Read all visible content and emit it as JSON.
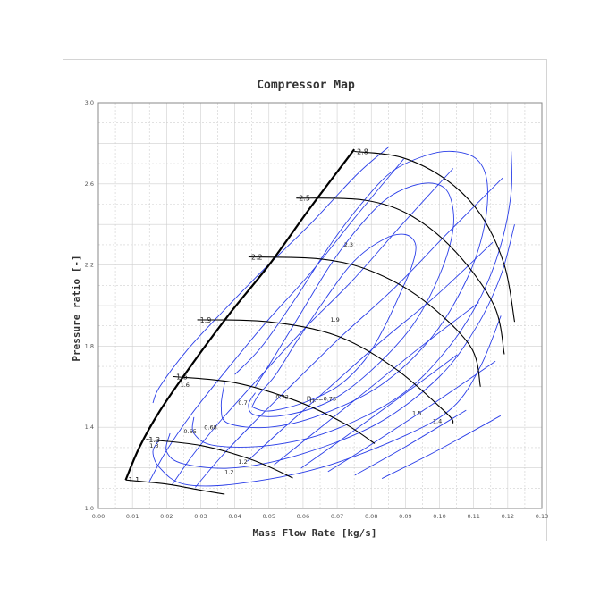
{
  "chart_data": {
    "type": "line",
    "title": "Compressor Map",
    "xlabel": "Mass Flow Rate  [kg/s]",
    "ylabel": "Pressure ratio  [-]",
    "xlim": [
      0.0,
      0.13
    ],
    "ylim": [
      1.0,
      3.0
    ],
    "x_ticks": [
      "0.00",
      "0.01",
      "0.02",
      "0.03",
      "0.04",
      "0.05",
      "0.06",
      "0.07",
      "0.08",
      "0.09",
      "0.10",
      "0.11",
      "0.12",
      "0.13"
    ],
    "y_ticks": [
      "1.0",
      "1.4",
      "1.8",
      "2.2",
      "2.6",
      "3.0"
    ],
    "grid": true,
    "colors": {
      "speed_lines": "#000000",
      "efficiency_lines": "#2a3ee8",
      "surge_line": "#000000",
      "grid": "#cfcfcf"
    },
    "surge_line": [
      [
        0.008,
        1.14
      ],
      [
        0.012,
        1.3
      ],
      [
        0.018,
        1.48
      ],
      [
        0.027,
        1.7
      ],
      [
        0.038,
        1.95
      ],
      [
        0.05,
        2.2
      ],
      [
        0.062,
        2.48
      ],
      [
        0.075,
        2.77
      ]
    ],
    "speed_lines": [
      {
        "label": "1.1",
        "points": [
          [
            0.008,
            1.14
          ],
          [
            0.02,
            1.12
          ],
          [
            0.03,
            1.09
          ],
          [
            0.037,
            1.07
          ]
        ]
      },
      {
        "label": "1.3",
        "points": [
          [
            0.014,
            1.34
          ],
          [
            0.03,
            1.31
          ],
          [
            0.045,
            1.24
          ],
          [
            0.057,
            1.15
          ]
        ]
      },
      {
        "label": "1.6",
        "points": [
          [
            0.022,
            1.65
          ],
          [
            0.04,
            1.62
          ],
          [
            0.058,
            1.53
          ],
          [
            0.072,
            1.42
          ],
          [
            0.081,
            1.32
          ]
        ]
      },
      {
        "label": "1.9",
        "points": [
          [
            0.029,
            1.93
          ],
          [
            0.05,
            1.92
          ],
          [
            0.07,
            1.85
          ],
          [
            0.087,
            1.69
          ],
          [
            0.102,
            1.47
          ],
          [
            0.104,
            1.42
          ]
        ]
      },
      {
        "label": "2.2",
        "points": [
          [
            0.044,
            2.24
          ],
          [
            0.065,
            2.23
          ],
          [
            0.08,
            2.17
          ],
          [
            0.095,
            2.03
          ],
          [
            0.109,
            1.8
          ],
          [
            0.112,
            1.6
          ]
        ]
      },
      {
        "label": "2.5",
        "points": [
          [
            0.058,
            2.53
          ],
          [
            0.078,
            2.52
          ],
          [
            0.092,
            2.44
          ],
          [
            0.105,
            2.26
          ],
          [
            0.116,
            2.0
          ],
          [
            0.119,
            1.76
          ]
        ]
      },
      {
        "label": "2.8",
        "points": [
          [
            0.075,
            2.76
          ],
          [
            0.089,
            2.73
          ],
          [
            0.102,
            2.62
          ],
          [
            0.112,
            2.45
          ],
          [
            0.119,
            2.2
          ],
          [
            0.122,
            1.92
          ]
        ]
      }
    ],
    "efficiency_contours": [
      {
        "label": "0.73",
        "points": [
          [
            0.045,
            1.5
          ],
          [
            0.05,
            1.48
          ],
          [
            0.06,
            1.52
          ],
          [
            0.07,
            1.6
          ],
          [
            0.078,
            1.73
          ],
          [
            0.084,
            1.9
          ],
          [
            0.089,
            2.08
          ],
          [
            0.092,
            2.2
          ],
          [
            0.093,
            2.3
          ],
          [
            0.09,
            2.35
          ],
          [
            0.084,
            2.33
          ],
          [
            0.075,
            2.22
          ],
          [
            0.066,
            2.02
          ],
          [
            0.058,
            1.82
          ],
          [
            0.052,
            1.66
          ],
          [
            0.047,
            1.56
          ],
          [
            0.045,
            1.5
          ]
        ]
      },
      {
        "label": "0.72",
        "points": [
          [
            0.046,
            1.57
          ],
          [
            0.044,
            1.51
          ],
          [
            0.046,
            1.46
          ],
          [
            0.055,
            1.46
          ],
          [
            0.068,
            1.53
          ],
          [
            0.08,
            1.68
          ],
          [
            0.092,
            1.9
          ],
          [
            0.1,
            2.15
          ],
          [
            0.104,
            2.38
          ],
          [
            0.103,
            2.54
          ],
          [
            0.099,
            2.6
          ],
          [
            0.092,
            2.59
          ],
          [
            0.084,
            2.52
          ],
          [
            0.076,
            2.38
          ],
          [
            0.068,
            2.2
          ],
          [
            0.06,
            1.98
          ],
          [
            0.052,
            1.76
          ],
          [
            0.046,
            1.6
          ]
        ]
      },
      {
        "label": "0.7",
        "points": [
          [
            0.037,
            1.62
          ],
          [
            0.036,
            1.5
          ],
          [
            0.038,
            1.42
          ],
          [
            0.05,
            1.4
          ],
          [
            0.065,
            1.46
          ],
          [
            0.083,
            1.61
          ],
          [
            0.098,
            1.85
          ],
          [
            0.108,
            2.13
          ],
          [
            0.113,
            2.38
          ],
          [
            0.114,
            2.6
          ],
          [
            0.111,
            2.72
          ],
          [
            0.104,
            2.76
          ],
          [
            0.096,
            2.74
          ],
          [
            0.086,
            2.66
          ],
          [
            0.077,
            2.5
          ],
          [
            0.068,
            2.3
          ],
          [
            0.058,
            2.04
          ],
          [
            0.048,
            1.8
          ],
          [
            0.04,
            1.66
          ]
        ]
      },
      {
        "label": "0.68",
        "points": [
          [
            0.028,
            1.45
          ],
          [
            0.028,
            1.37
          ],
          [
            0.034,
            1.31
          ],
          [
            0.05,
            1.31
          ],
          [
            0.068,
            1.38
          ],
          [
            0.088,
            1.55
          ],
          [
            0.102,
            1.78
          ],
          [
            0.112,
            2.04
          ],
          [
            0.118,
            2.3
          ],
          [
            0.121,
            2.56
          ],
          [
            0.121,
            2.76
          ]
        ]
      },
      {
        "label": "0.65",
        "points": [
          [
            0.021,
            1.37
          ],
          [
            0.02,
            1.28
          ],
          [
            0.025,
            1.22
          ],
          [
            0.04,
            1.2
          ],
          [
            0.06,
            1.27
          ],
          [
            0.082,
            1.42
          ],
          [
            0.1,
            1.65
          ],
          [
            0.111,
            1.9
          ],
          [
            0.118,
            2.15
          ],
          [
            0.122,
            2.4
          ]
        ]
      }
    ],
    "efficiency_guides": [
      [
        [
          0.016,
          1.52
        ],
        [
          0.018,
          1.6
        ],
        [
          0.026,
          1.78
        ],
        [
          0.037,
          1.98
        ],
        [
          0.048,
          2.17
        ],
        [
          0.062,
          2.4
        ],
        [
          0.076,
          2.65
        ],
        [
          0.085,
          2.78
        ]
      ],
      [
        [
          0.018,
          1.34
        ],
        [
          0.016,
          1.28
        ],
        [
          0.018,
          1.2
        ],
        [
          0.025,
          1.12
        ],
        [
          0.04,
          1.12
        ],
        [
          0.065,
          1.2
        ],
        [
          0.09,
          1.36
        ],
        [
          0.104,
          1.5
        ],
        [
          0.112,
          1.7
        ],
        [
          0.118,
          1.95
        ]
      ]
    ],
    "annotations": [
      {
        "text": "η",
        "subscript": "T-T",
        "suffix": "=0.73",
        "x": 0.061,
        "y": 1.53
      },
      {
        "text": "0.72",
        "x": 0.052,
        "y": 1.54
      },
      {
        "text": "0.7",
        "x": 0.041,
        "y": 1.51
      },
      {
        "text": "0.68",
        "x": 0.031,
        "y": 1.39
      },
      {
        "text": "0.65",
        "x": 0.025,
        "y": 1.37
      },
      {
        "text": "2.3",
        "x": 0.072,
        "y": 2.29
      },
      {
        "text": "1.9",
        "x": 0.068,
        "y": 1.92
      },
      {
        "text": "1.6",
        "x": 0.024,
        "y": 1.6
      },
      {
        "text": "1.5",
        "x": 0.092,
        "y": 1.46
      },
      {
        "text": "1.4",
        "x": 0.098,
        "y": 1.42
      },
      {
        "text": "1.3",
        "x": 0.015,
        "y": 1.3
      },
      {
        "text": "1.2",
        "x": 0.041,
        "y": 1.22
      },
      {
        "text": "1.2",
        "x": 0.037,
        "y": 1.17
      }
    ]
  }
}
